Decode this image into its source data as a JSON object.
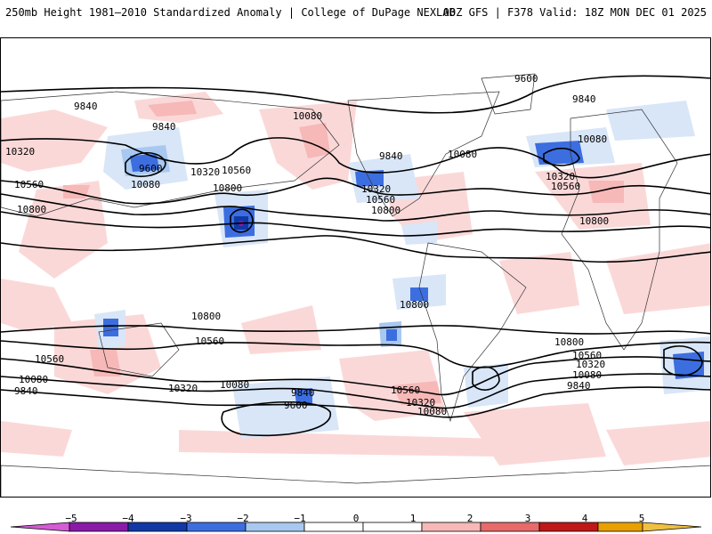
{
  "header": {
    "left_title": "250mb Height 1981–2010 Standardized Anomaly | College of DuPage NEXLAB",
    "right_title": "00Z GFS | F378 Valid: 18Z MON DEC 01 2025"
  },
  "map": {
    "projection": "global cylindrical",
    "contour_labels": [
      "9600",
      "9840",
      "10080",
      "10320",
      "10560",
      "10800"
    ],
    "labels": {
      "l1": "9840",
      "l2": "9840",
      "l3": "9600",
      "l4": "10080",
      "l5": "10320",
      "l6": "10560",
      "l7": "10800",
      "l8": "10320",
      "l9": "10560",
      "l10": "10800",
      "l11": "10800",
      "l12": "9840",
      "l13": "10080",
      "l14": "9600",
      "l15": "10320",
      "l16": "10560",
      "l17": "10800",
      "l18": "9600",
      "l19": "9840",
      "l20": "10080",
      "l21": "10320",
      "l22": "10560",
      "l23": "10800",
      "l24": "10800",
      "l25": "10560",
      "l26": "10080",
      "l27": "9840",
      "l28": "10320",
      "l29": "10080",
      "l30": "9840",
      "l31": "9600",
      "l32": "10800",
      "l33": "10560",
      "l34": "10320",
      "l35": "10080",
      "l36": "10800",
      "l37": "10560",
      "l38": "10320",
      "l39": "10080",
      "l40": "9840"
    }
  },
  "colorbar": {
    "ticks": [
      "−5",
      "−4",
      "−3",
      "−2",
      "−1",
      "0",
      "1",
      "2",
      "3",
      "4",
      "5"
    ],
    "colors": {
      "neg5": "#d45cd4",
      "neg4": "#8a1aa8",
      "neg3": "#1238a8",
      "neg2": "#3c6ee0",
      "neg1": "#a8c8f0",
      "neg05": "#d8e6f8",
      "zero": "#ffffff",
      "pos05": "#fbd8d8",
      "pos1": "#f7b8b8",
      "pos2": "#e86a6a",
      "pos3": "#c01818",
      "pos4": "#e8a000",
      "pos5": "#f0c040"
    }
  }
}
